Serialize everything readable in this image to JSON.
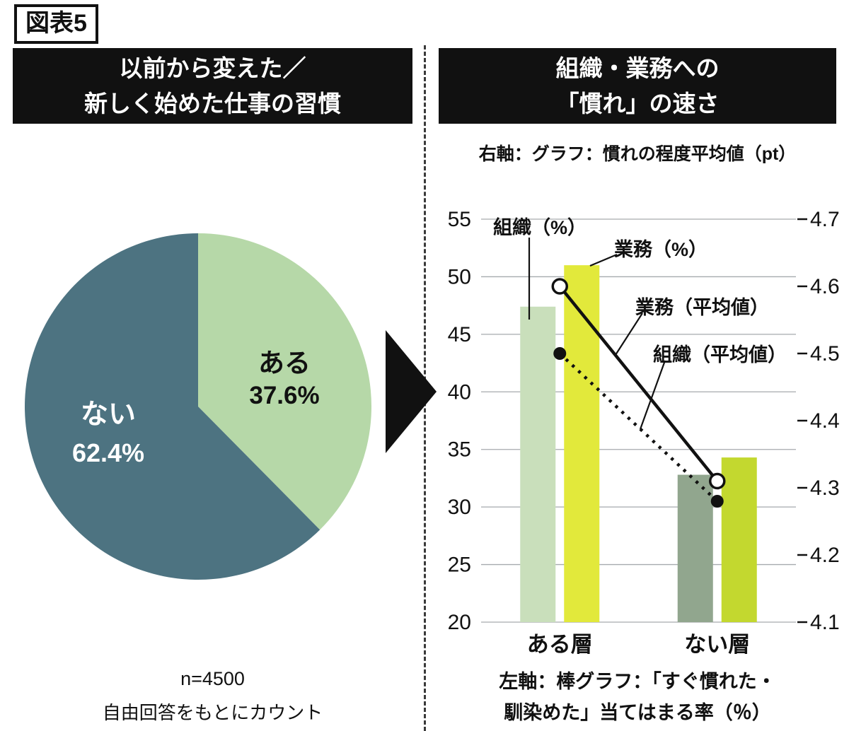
{
  "figure_label": "図表5",
  "left_panel": {
    "header_line1": "以前から変えた／",
    "header_line2": "新しく始めた仕事の習慣",
    "pie": {
      "slices": [
        {
          "label": "ある",
          "value_label": "37.6%",
          "value": 37.6,
          "color": "#b6d8a8",
          "text_color": "#111111"
        },
        {
          "label": "ない",
          "value_label": "62.4%",
          "value": 62.4,
          "color": "#4d7381",
          "text_color": "#ffffff"
        }
      ]
    },
    "footnote_line1": "n=4500",
    "footnote_line2": "自由回答をもとにカウント"
  },
  "right_panel": {
    "header_line1": "組織・業務への",
    "header_line2": "「慣れ」の速さ",
    "right_axis_note": "右軸：グラフ：慣れの程度平均値（pt）",
    "left_axis_note_line1": "左軸：棒グラフ：「すぐ慣れた・",
    "left_axis_note_line2": "馴染めた」当てはまる率（％）"
  },
  "chart_data": {
    "type": "combo-bar-line",
    "categories": [
      "ある層",
      "ない層"
    ],
    "bar_series": [
      {
        "name": "組織（%）",
        "axis": "left",
        "values": [
          47.4,
          32.8
        ],
        "colors": [
          "#c9dfbb",
          "#91a68e"
        ]
      },
      {
        "name": "業務（%）",
        "axis": "left",
        "values": [
          51.0,
          34.3
        ],
        "colors": [
          "#e2e93b",
          "#c3d82f"
        ]
      }
    ],
    "line_series": [
      {
        "name": "業務（平均値）",
        "axis": "right",
        "values": [
          4.6,
          4.31
        ],
        "style": "solid",
        "marker": "open-circle",
        "color": "#111111"
      },
      {
        "name": "組織（平均値）",
        "axis": "right",
        "values": [
          4.5,
          4.28
        ],
        "style": "dashed",
        "marker": "filled-circle",
        "color": "#111111"
      }
    ],
    "left_axis": {
      "min": 20,
      "max": 55,
      "ticks": [
        55,
        50,
        45,
        40,
        35,
        30,
        25,
        20
      ]
    },
    "right_axis": {
      "min": 4.1,
      "max": 4.7,
      "ticks": [
        "4.7",
        "4.6",
        "4.5",
        "4.4",
        "4.3",
        "4.2",
        "4.1"
      ]
    },
    "grid": true,
    "legend_position": "annotations-with-leader-lines"
  }
}
